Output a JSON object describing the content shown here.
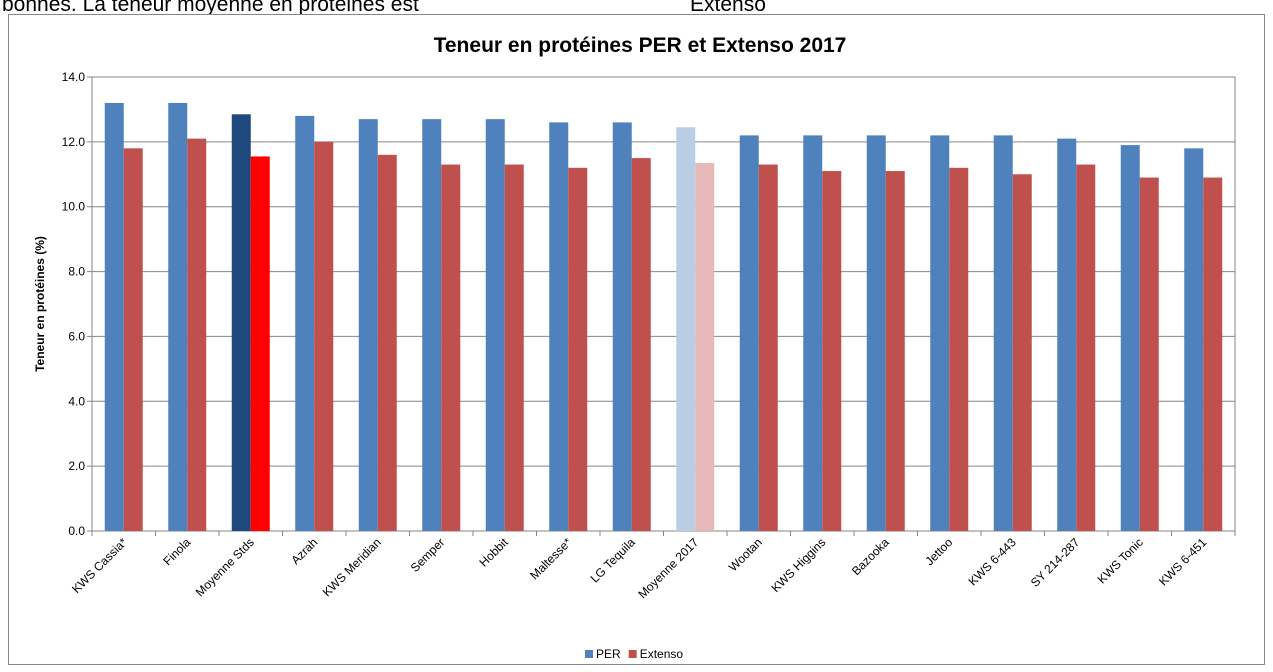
{
  "page_text": [
    "bonnes. La teneur moyenne en protéines est",
    "Extenso"
  ],
  "chart_data": {
    "type": "bar",
    "title": "Teneur en protéines PER et Extenso 2017",
    "ylabel": "Teneur en protéines (%)",
    "categories": [
      "KWS Cassia*",
      "Finola",
      "Moyenne Stds",
      "Azrah",
      "KWS Meridian",
      "Semper",
      "Hobbit",
      "Maltesse*",
      "LG Tequila",
      "Moyenne 2017",
      "Wootan",
      "KWS Higgins",
      "Bazooka",
      "Jettoo",
      "KWS 6-443",
      "SY 214-287",
      "KWS Tonic",
      "KWS 6-451"
    ],
    "series": [
      {
        "name": "PER",
        "color": "#4f81bd",
        "values": [
          13.2,
          13.2,
          12.85,
          12.8,
          12.7,
          12.7,
          12.7,
          12.6,
          12.6,
          12.45,
          12.2,
          12.2,
          12.2,
          12.2,
          12.2,
          12.1,
          11.9,
          11.8
        ],
        "colors": [
          "#4f81bd",
          "#4f81bd",
          "#1f497d",
          "#4f81bd",
          "#4f81bd",
          "#4f81bd",
          "#4f81bd",
          "#4f81bd",
          "#4f81bd",
          "#b9cde5",
          "#4f81bd",
          "#4f81bd",
          "#4f81bd",
          "#4f81bd",
          "#4f81bd",
          "#4f81bd",
          "#4f81bd",
          "#4f81bd"
        ]
      },
      {
        "name": "Extenso",
        "color": "#c0504d",
        "values": [
          11.8,
          12.1,
          11.55,
          12.0,
          11.6,
          11.3,
          11.3,
          11.2,
          11.5,
          11.35,
          11.3,
          11.1,
          11.1,
          11.2,
          11.0,
          11.3,
          10.9,
          10.9
        ],
        "colors": [
          "#c0504d",
          "#c0504d",
          "#ff0000",
          "#c0504d",
          "#c0504d",
          "#c0504d",
          "#c0504d",
          "#c0504d",
          "#c0504d",
          "#e6b9b8",
          "#c0504d",
          "#c0504d",
          "#c0504d",
          "#c0504d",
          "#c0504d",
          "#c0504d",
          "#c0504d",
          "#c0504d"
        ]
      }
    ],
    "ylim": [
      0,
      14
    ],
    "yticks": [
      {
        "value": 0,
        "label": "0.0"
      },
      {
        "value": 2,
        "label": "2.0"
      },
      {
        "value": 4,
        "label": "4.0"
      },
      {
        "value": 6,
        "label": "6.0"
      },
      {
        "value": 8,
        "label": "8.0"
      },
      {
        "value": 10,
        "label": "10.0"
      },
      {
        "value": 12,
        "label": "12.0"
      },
      {
        "value": 14,
        "label": "14.0"
      }
    ],
    "grid": true,
    "legend": "bottom"
  }
}
